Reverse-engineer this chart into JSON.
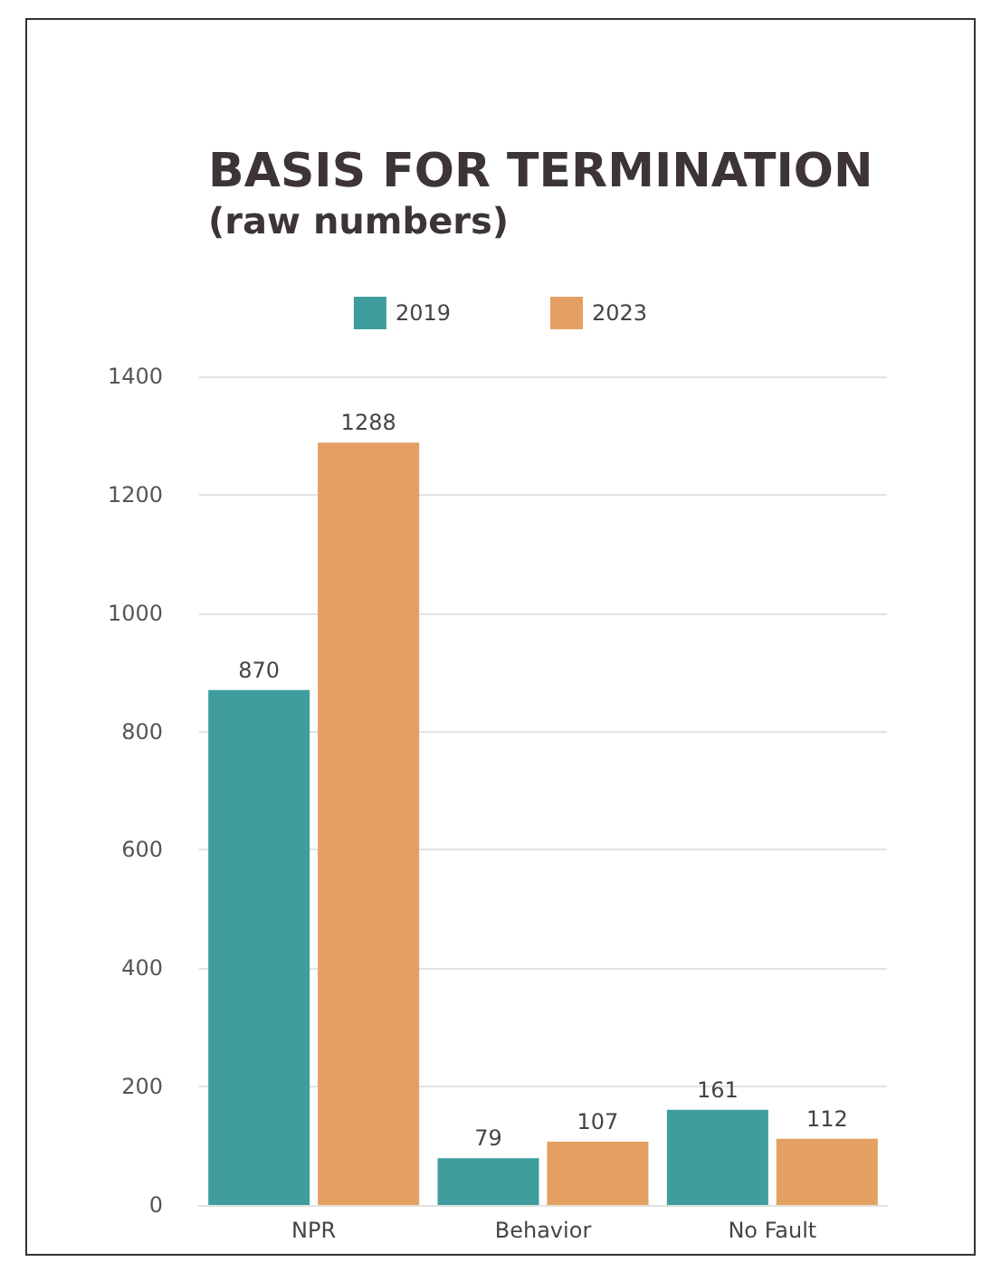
{
  "chart_data": {
    "type": "bar",
    "title": "BASIS FOR TERMINATION",
    "subtitle": "(raw numbers)",
    "categories": [
      "NPR",
      "Behavior",
      "No Fault"
    ],
    "series": [
      {
        "name": "2019",
        "color": "#3f9e9d",
        "values": [
          870,
          79,
          161
        ]
      },
      {
        "name": "2023",
        "color": "#e3a062",
        "values": [
          1288,
          107,
          112
        ]
      }
    ],
    "ylim": [
      0,
      1400
    ],
    "yticks": [
      0,
      200,
      400,
      600,
      800,
      1000,
      1200,
      1400
    ],
    "grid": "y",
    "legend": "top",
    "data_labels": true
  }
}
